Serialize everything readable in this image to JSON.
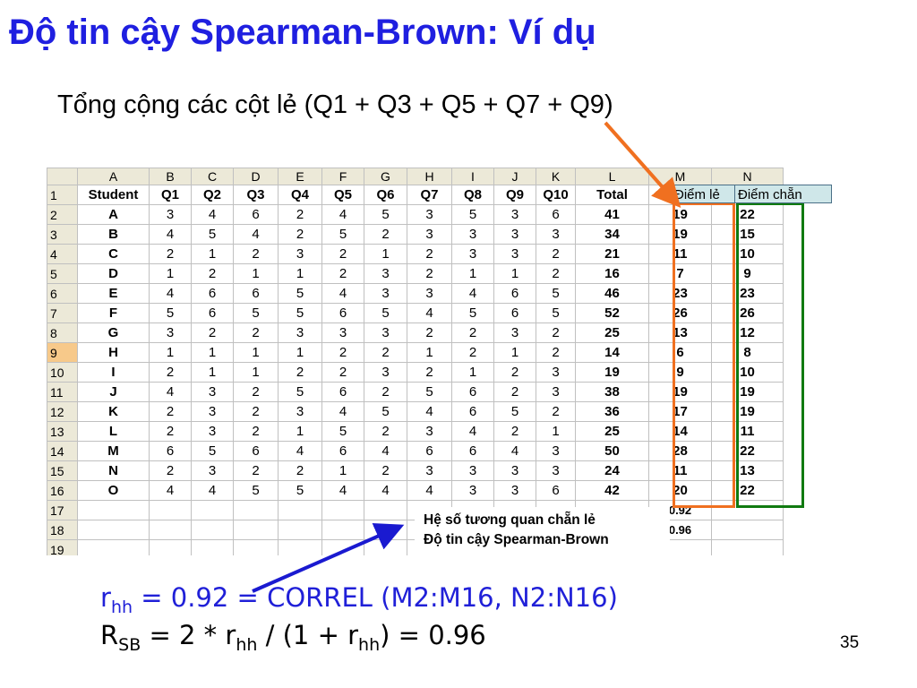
{
  "slide": {
    "title": "Độ tin cậy Spearman-Brown: Ví dụ",
    "subtitle": "Tổng cộng các cột lẻ (Q1 + Q3 + Q5 + Q7 + Q9)",
    "page_number": "35"
  },
  "sheet": {
    "columns": [
      "",
      "A",
      "B",
      "C",
      "D",
      "E",
      "F",
      "G",
      "H",
      "I",
      "J",
      "K",
      "L",
      "M",
      "N"
    ],
    "header_row": [
      "Student",
      "Q1",
      "Q2",
      "Q3",
      "Q4",
      "Q5",
      "Q6",
      "Q7",
      "Q8",
      "Q9",
      "Q10",
      "Total",
      "",
      ""
    ],
    "rows": [
      [
        "A",
        "3",
        "4",
        "6",
        "2",
        "4",
        "5",
        "3",
        "5",
        "3",
        "6",
        "41",
        "19",
        "22"
      ],
      [
        "B",
        "4",
        "5",
        "4",
        "2",
        "5",
        "2",
        "3",
        "3",
        "3",
        "3",
        "34",
        "19",
        "15"
      ],
      [
        "C",
        "2",
        "1",
        "2",
        "3",
        "2",
        "1",
        "2",
        "3",
        "3",
        "2",
        "21",
        "11",
        "10"
      ],
      [
        "D",
        "1",
        "2",
        "1",
        "1",
        "2",
        "3",
        "2",
        "1",
        "1",
        "2",
        "16",
        "7",
        "9"
      ],
      [
        "E",
        "4",
        "6",
        "6",
        "5",
        "4",
        "3",
        "3",
        "4",
        "6",
        "5",
        "46",
        "23",
        "23"
      ],
      [
        "F",
        "5",
        "6",
        "5",
        "5",
        "6",
        "5",
        "4",
        "5",
        "6",
        "5",
        "52",
        "26",
        "26"
      ],
      [
        "G",
        "3",
        "2",
        "2",
        "3",
        "3",
        "3",
        "2",
        "2",
        "3",
        "2",
        "25",
        "13",
        "12"
      ],
      [
        "H",
        "1",
        "1",
        "1",
        "1",
        "2",
        "2",
        "1",
        "2",
        "1",
        "2",
        "14",
        "6",
        "8"
      ],
      [
        "I",
        "2",
        "1",
        "1",
        "2",
        "2",
        "3",
        "2",
        "1",
        "2",
        "3",
        "19",
        "9",
        "10"
      ],
      [
        "J",
        "4",
        "3",
        "2",
        "5",
        "6",
        "2",
        "5",
        "6",
        "2",
        "3",
        "38",
        "19",
        "19"
      ],
      [
        "K",
        "2",
        "3",
        "2",
        "3",
        "4",
        "5",
        "4",
        "6",
        "5",
        "2",
        "36",
        "17",
        "19"
      ],
      [
        "L",
        "2",
        "3",
        "2",
        "1",
        "5",
        "2",
        "3",
        "4",
        "2",
        "1",
        "25",
        "14",
        "11"
      ],
      [
        "M",
        "6",
        "5",
        "6",
        "4",
        "6",
        "4",
        "6",
        "6",
        "4",
        "3",
        "50",
        "28",
        "22"
      ],
      [
        "N",
        "2",
        "3",
        "2",
        "2",
        "1",
        "2",
        "3",
        "3",
        "3",
        "3",
        "24",
        "11",
        "13"
      ],
      [
        "O",
        "4",
        "4",
        "5",
        "5",
        "4",
        "4",
        "4",
        "3",
        "3",
        "6",
        "42",
        "20",
        "22"
      ]
    ],
    "row17_m": "0.92",
    "row18_m": "0.96",
    "selected_row": "9",
    "label_m": "Điểm lẻ",
    "label_n": "Điểm chẵn",
    "annotation_line1": "Hệ số tương quan chẵn lẻ",
    "annotation_line2": "Độ tin cậy Spearman-Brown"
  },
  "formula1": {
    "r": "r",
    "sub": "hh",
    "rest": " = 0.92 = CORREL (M2:M16, N2:N16)"
  },
  "formula2": {
    "R": "R",
    "sub_sb": "SB",
    "part1": " = 2 * r",
    "sub_hh1": "hh",
    "part2": " / (1 + r",
    "sub_hh2": "hh",
    "part3": ") = 0.96"
  },
  "colors": {
    "title": "#1f1fe0",
    "orange_box": "#f07020",
    "green_box": "#107a10",
    "arrow_orange": "#f07020",
    "arrow_blue": "#1a1ad0",
    "header_bg": "#ece9d8",
    "label_bg": "#cfe7e9"
  }
}
